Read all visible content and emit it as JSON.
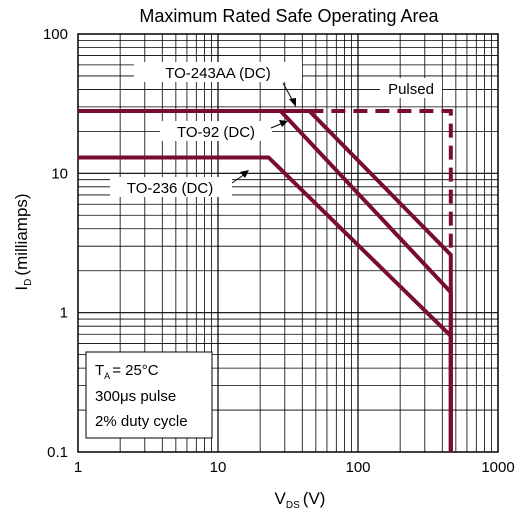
{
  "chart_data": {
    "type": "line",
    "title": "Maximum Rated Safe Operating Area",
    "xlabel": {
      "main": "V",
      "sub": "DS",
      "unit": "(V)"
    },
    "ylabel": {
      "main": "I",
      "sub": "D",
      "unit": "(milliamps)"
    },
    "xscale": "log",
    "yscale": "log",
    "xlim": [
      1,
      1000
    ],
    "ylim": [
      0.1,
      100
    ],
    "x_ticks": [
      {
        "v": 1,
        "label": "1"
      },
      {
        "v": 10,
        "label": "10"
      },
      {
        "v": 100,
        "label": "100"
      },
      {
        "v": 1000,
        "label": "1000"
      }
    ],
    "y_ticks": [
      {
        "v": 0.1,
        "label": "0.1"
      },
      {
        "v": 1,
        "label": "1"
      },
      {
        "v": 10,
        "label": "10"
      },
      {
        "v": 100,
        "label": "100"
      }
    ],
    "grid": true,
    "line_color": "#7a0c2e",
    "series": [
      {
        "name": "TO-243AA (DC)",
        "style": "solid",
        "x": [
          1,
          45,
          460,
          460
        ],
        "y": [
          28,
          28,
          2.6,
          0.1
        ]
      },
      {
        "name": "TO-92 (DC)",
        "style": "solid",
        "x": [
          1,
          28,
          460,
          460
        ],
        "y": [
          28,
          28,
          1.4,
          0.1
        ]
      },
      {
        "name": "TO-236 (DC)",
        "style": "solid",
        "x": [
          1,
          23,
          460,
          460
        ],
        "y": [
          13,
          13,
          0.68,
          0.1
        ]
      },
      {
        "name": "Pulsed",
        "style": "dashed",
        "x": [
          45,
          460,
          460
        ],
        "y": [
          28,
          28,
          2.6
        ]
      }
    ],
    "conditions": [
      "= 25°C",
      "300μs pulse",
      "2% duty cycle"
    ],
    "conditions_symbol": {
      "main": "T",
      "sub": "A"
    }
  }
}
